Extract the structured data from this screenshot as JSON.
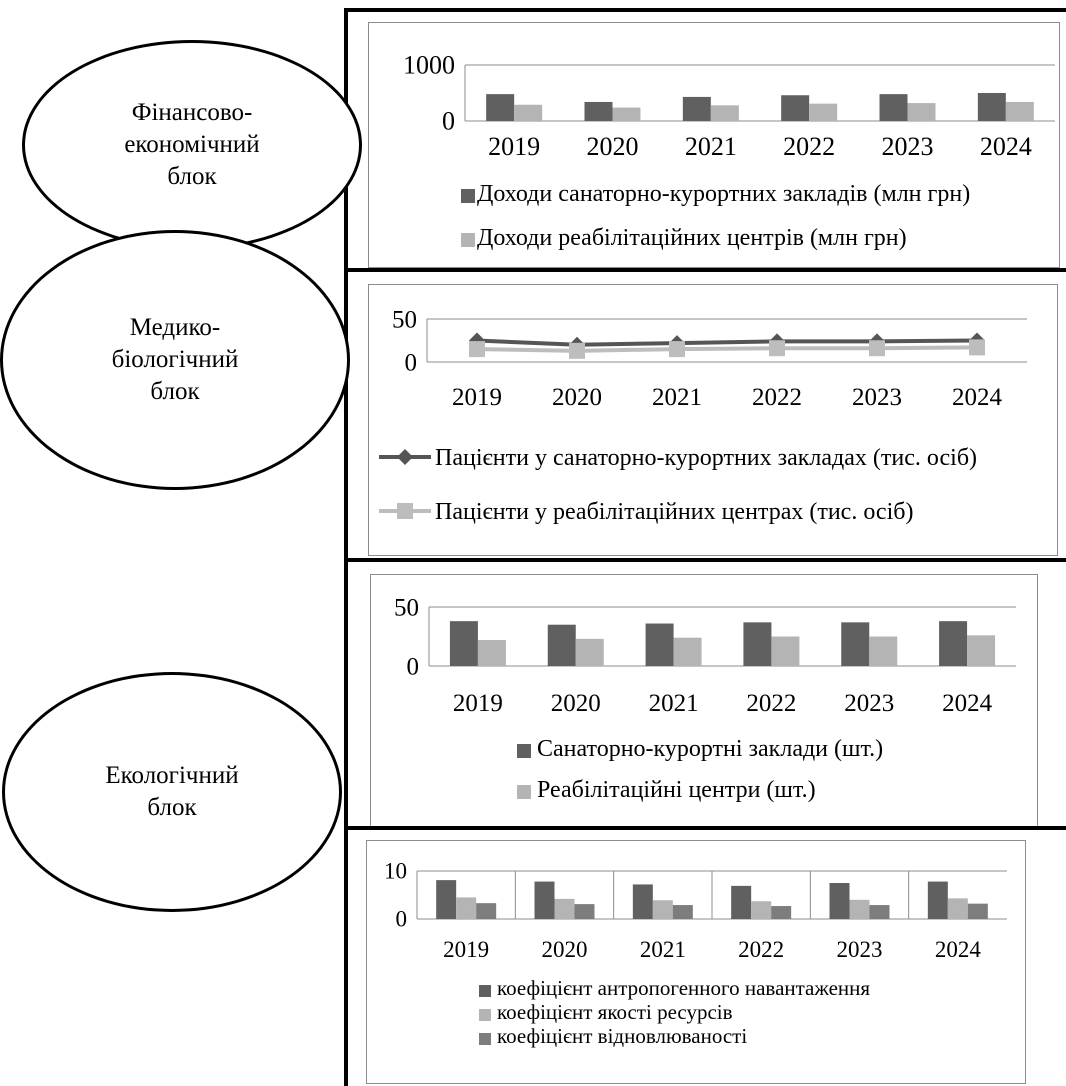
{
  "blocks": [
    {
      "label": "Фінансово-\nекономічний\nблок"
    },
    {
      "label": "Медико-\nбіологічний\nблок"
    },
    {
      "label": "Екологічний\nблок"
    }
  ],
  "colors": {
    "dark": "#606060",
    "light": "#b4b4b4",
    "mid": "#7d7d7d",
    "line_dark": "#555555",
    "line_light": "#bdbdbd"
  },
  "chart_data": [
    {
      "type": "bar",
      "categories": [
        "2019",
        "2020",
        "2021",
        "2022",
        "2023",
        "2024"
      ],
      "ylim": [
        0,
        1000
      ],
      "yticks": [
        "0",
        "1000"
      ],
      "series": [
        {
          "name": "Доходи санаторно-курортних закладів (млн грн)",
          "values": [
            480,
            340,
            430,
            460,
            480,
            500
          ],
          "color": "#606060"
        },
        {
          "name": "Доходи реабілітаційних центрів (млн грн)",
          "values": [
            290,
            240,
            280,
            310,
            320,
            340
          ],
          "color": "#b4b4b4"
        }
      ],
      "legend_position": "bottom"
    },
    {
      "type": "line",
      "categories": [
        "2019",
        "2020",
        "2021",
        "2022",
        "2023",
        "2024"
      ],
      "ylim": [
        0,
        50
      ],
      "yticks": [
        "0",
        "50"
      ],
      "series": [
        {
          "name": "Пацієнти у санаторно-курортних закладах (тис. осіб)",
          "values": [
            25,
            20,
            22,
            24,
            24,
            25
          ],
          "color": "#555555",
          "marker": "diamond"
        },
        {
          "name": "Пацієнти у реабілітаційних центрах (тис. осіб)",
          "values": [
            15,
            13,
            15,
            16,
            16,
            17
          ],
          "color": "#bdbdbd",
          "marker": "square"
        }
      ],
      "legend_position": "bottom"
    },
    {
      "type": "bar",
      "categories": [
        "2019",
        "2020",
        "2021",
        "2022",
        "2023",
        "2024"
      ],
      "ylim": [
        0,
        50
      ],
      "yticks": [
        "0",
        "50"
      ],
      "series": [
        {
          "name": "Санаторно-курортні заклади (шт.)",
          "values": [
            38,
            35,
            36,
            37,
            37,
            38
          ],
          "color": "#606060"
        },
        {
          "name": "Реабілітаційні центри (шт.)",
          "values": [
            22,
            23,
            24,
            25,
            25,
            26
          ],
          "color": "#b4b4b4"
        }
      ],
      "legend_position": "bottom"
    },
    {
      "type": "bar",
      "categories": [
        "2019",
        "2020",
        "2021",
        "2022",
        "2023",
        "2024"
      ],
      "ylim": [
        0,
        10
      ],
      "yticks": [
        "0",
        "10"
      ],
      "series": [
        {
          "name": "коефіцієнт антропогенного навантаження",
          "values": [
            8.1,
            7.8,
            7.2,
            6.9,
            7.5,
            7.8
          ],
          "color": "#606060"
        },
        {
          "name": "коефіцієнт якості ресурсів",
          "values": [
            4.5,
            4.2,
            3.9,
            3.7,
            4.0,
            4.3
          ],
          "color": "#b4b4b4"
        },
        {
          "name": "коефіцієнт відновлюваності",
          "values": [
            3.3,
            3.1,
            2.9,
            2.7,
            2.9,
            3.2
          ],
          "color": "#7d7d7d"
        }
      ],
      "legend_position": "bottom"
    }
  ]
}
